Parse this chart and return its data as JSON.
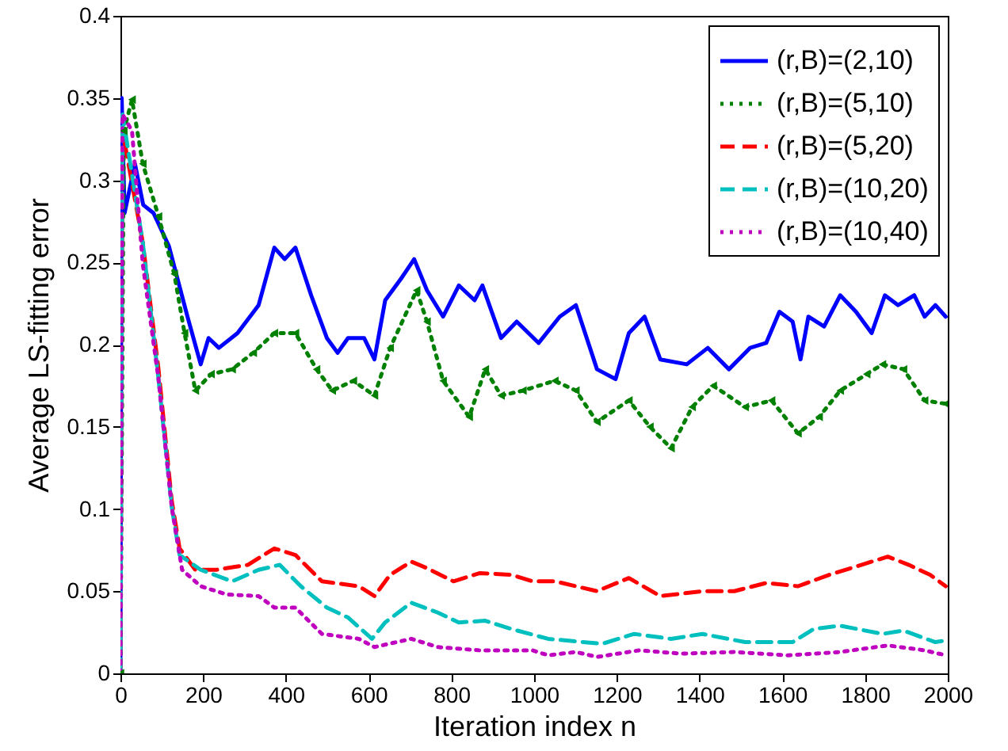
{
  "chart_data": {
    "type": "line",
    "xlabel": "Iteration index n",
    "ylabel": "Average LS-fitting error",
    "xlim": [
      0,
      2000
    ],
    "ylim": [
      0,
      0.4
    ],
    "xticks": [
      0,
      200,
      400,
      600,
      800,
      1000,
      1200,
      1400,
      1600,
      1800,
      2000
    ],
    "yticks": [
      0,
      0.05,
      0.1,
      0.15,
      0.2,
      0.25,
      0.3,
      0.35,
      0.4
    ],
    "legend": "top right",
    "series": [
      {
        "name": "(r,B)=(2,10)",
        "color": "#0000ff",
        "line_style": "solid",
        "x": [
          0,
          3,
          10,
          35,
          55,
          80,
          117,
          162,
          194,
          213,
          238,
          283,
          334,
          372,
          397,
          423,
          461,
          499,
          525,
          550,
          589,
          614,
          640,
          678,
          710,
          741,
          780,
          818,
          856,
          875,
          920,
          958,
          1011,
          1062,
          1101,
          1152,
          1197,
          1229,
          1267,
          1305,
          1369,
          1420,
          1471,
          1522,
          1561,
          1593,
          1625,
          1644,
          1663,
          1701,
          1740,
          1778,
          1816,
          1848,
          1880,
          1919,
          1944,
          1970,
          1995
        ],
        "values": [
          0,
          0.35,
          0.28,
          0.31,
          0.285,
          0.28,
          0.26,
          0.217,
          0.188,
          0.204,
          0.198,
          0.207,
          0.224,
          0.259,
          0.252,
          0.259,
          0.23,
          0.204,
          0.195,
          0.204,
          0.204,
          0.191,
          0.227,
          0.24,
          0.252,
          0.233,
          0.217,
          0.236,
          0.227,
          0.236,
          0.204,
          0.214,
          0.201,
          0.217,
          0.224,
          0.185,
          0.179,
          0.207,
          0.217,
          0.191,
          0.188,
          0.198,
          0.185,
          0.198,
          0.201,
          0.22,
          0.214,
          0.191,
          0.217,
          0.211,
          0.23,
          0.22,
          0.207,
          0.23,
          0.224,
          0.23,
          0.217,
          0.224,
          0.217
        ]
      },
      {
        "name": "(r,B)=(5,10)",
        "color": "#008000",
        "line_style": "dotted",
        "marker": "triangle",
        "x": [
          0,
          8,
          28,
          54,
          92,
          130,
          155,
          181,
          219,
          270,
          321,
          372,
          423,
          474,
          512,
          563,
          614,
          652,
          716,
          741,
          780,
          843,
          882,
          920,
          973,
          1050,
          1101,
          1152,
          1229,
          1280,
          1331,
          1382,
          1433,
          1510,
          1574,
          1638,
          1689,
          1740,
          1804,
          1842,
          1893,
          1944,
          1995
        ],
        "values": [
          0,
          0.33,
          0.349,
          0.31,
          0.278,
          0.243,
          0.207,
          0.172,
          0.182,
          0.185,
          0.195,
          0.207,
          0.207,
          0.185,
          0.172,
          0.178,
          0.169,
          0.198,
          0.233,
          0.214,
          0.178,
          0.156,
          0.185,
          0.169,
          0.172,
          0.178,
          0.172,
          0.153,
          0.166,
          0.15,
          0.137,
          0.162,
          0.175,
          0.162,
          0.166,
          0.146,
          0.156,
          0.172,
          0.182,
          0.188,
          0.185,
          0.166,
          0.164
        ]
      },
      {
        "name": "(r,B)=(5,20)",
        "color": "#ff0000",
        "line_style": "dashed",
        "x": [
          0,
          5,
          28,
          54,
          92,
          124,
          143,
          181,
          232,
          308,
          372,
          423,
          487,
          576,
          614,
          652,
          703,
          741,
          805,
          869,
          945,
          996,
          1050,
          1152,
          1229,
          1305,
          1407,
          1484,
          1561,
          1638,
          1714,
          1791,
          1855,
          1906,
          1957,
          1995
        ],
        "values": [
          0,
          0.33,
          0.298,
          0.262,
          0.185,
          0.105,
          0.076,
          0.063,
          0.063,
          0.066,
          0.076,
          0.072,
          0.056,
          0.053,
          0.047,
          0.06,
          0.068,
          0.064,
          0.056,
          0.061,
          0.06,
          0.056,
          0.056,
          0.05,
          0.058,
          0.047,
          0.05,
          0.05,
          0.055,
          0.053,
          0.06,
          0.066,
          0.071,
          0.066,
          0.06,
          0.053
        ]
      },
      {
        "name": "(r,B)=(10,20)",
        "color": "#00bfbf",
        "line_style": "dashed",
        "x": [
          0,
          5,
          54,
          92,
          124,
          143,
          194,
          270,
          334,
          385,
          436,
          499,
          550,
          608,
          640,
          703,
          767,
          818,
          882,
          945,
          1034,
          1165,
          1242,
          1331,
          1407,
          1510,
          1625,
          1676,
          1740,
          1842,
          1893,
          1970,
          1995
        ],
        "values": [
          0,
          0.34,
          0.262,
          0.179,
          0.101,
          0.072,
          0.063,
          0.056,
          0.063,
          0.066,
          0.053,
          0.04,
          0.034,
          0.021,
          0.031,
          0.043,
          0.037,
          0.031,
          0.032,
          0.027,
          0.021,
          0.018,
          0.024,
          0.021,
          0.024,
          0.019,
          0.019,
          0.027,
          0.029,
          0.024,
          0.026,
          0.019,
          0.02
        ]
      },
      {
        "name": "(r,B)=(10,40)",
        "color": "#bf00bf",
        "line_style": "dotted",
        "x": [
          0,
          5,
          28,
          54,
          92,
          124,
          149,
          194,
          257,
          334,
          372,
          423,
          487,
          576,
          614,
          703,
          767,
          869,
          996,
          1034,
          1101,
          1152,
          1254,
          1356,
          1484,
          1612,
          1740,
          1855,
          1944,
          1995
        ],
        "values": [
          0,
          0.34,
          0.33,
          0.249,
          0.179,
          0.101,
          0.063,
          0.053,
          0.048,
          0.047,
          0.04,
          0.04,
          0.024,
          0.021,
          0.016,
          0.021,
          0.016,
          0.014,
          0.014,
          0.011,
          0.013,
          0.01,
          0.014,
          0.012,
          0.013,
          0.011,
          0.013,
          0.017,
          0.014,
          0.011
        ]
      }
    ]
  }
}
